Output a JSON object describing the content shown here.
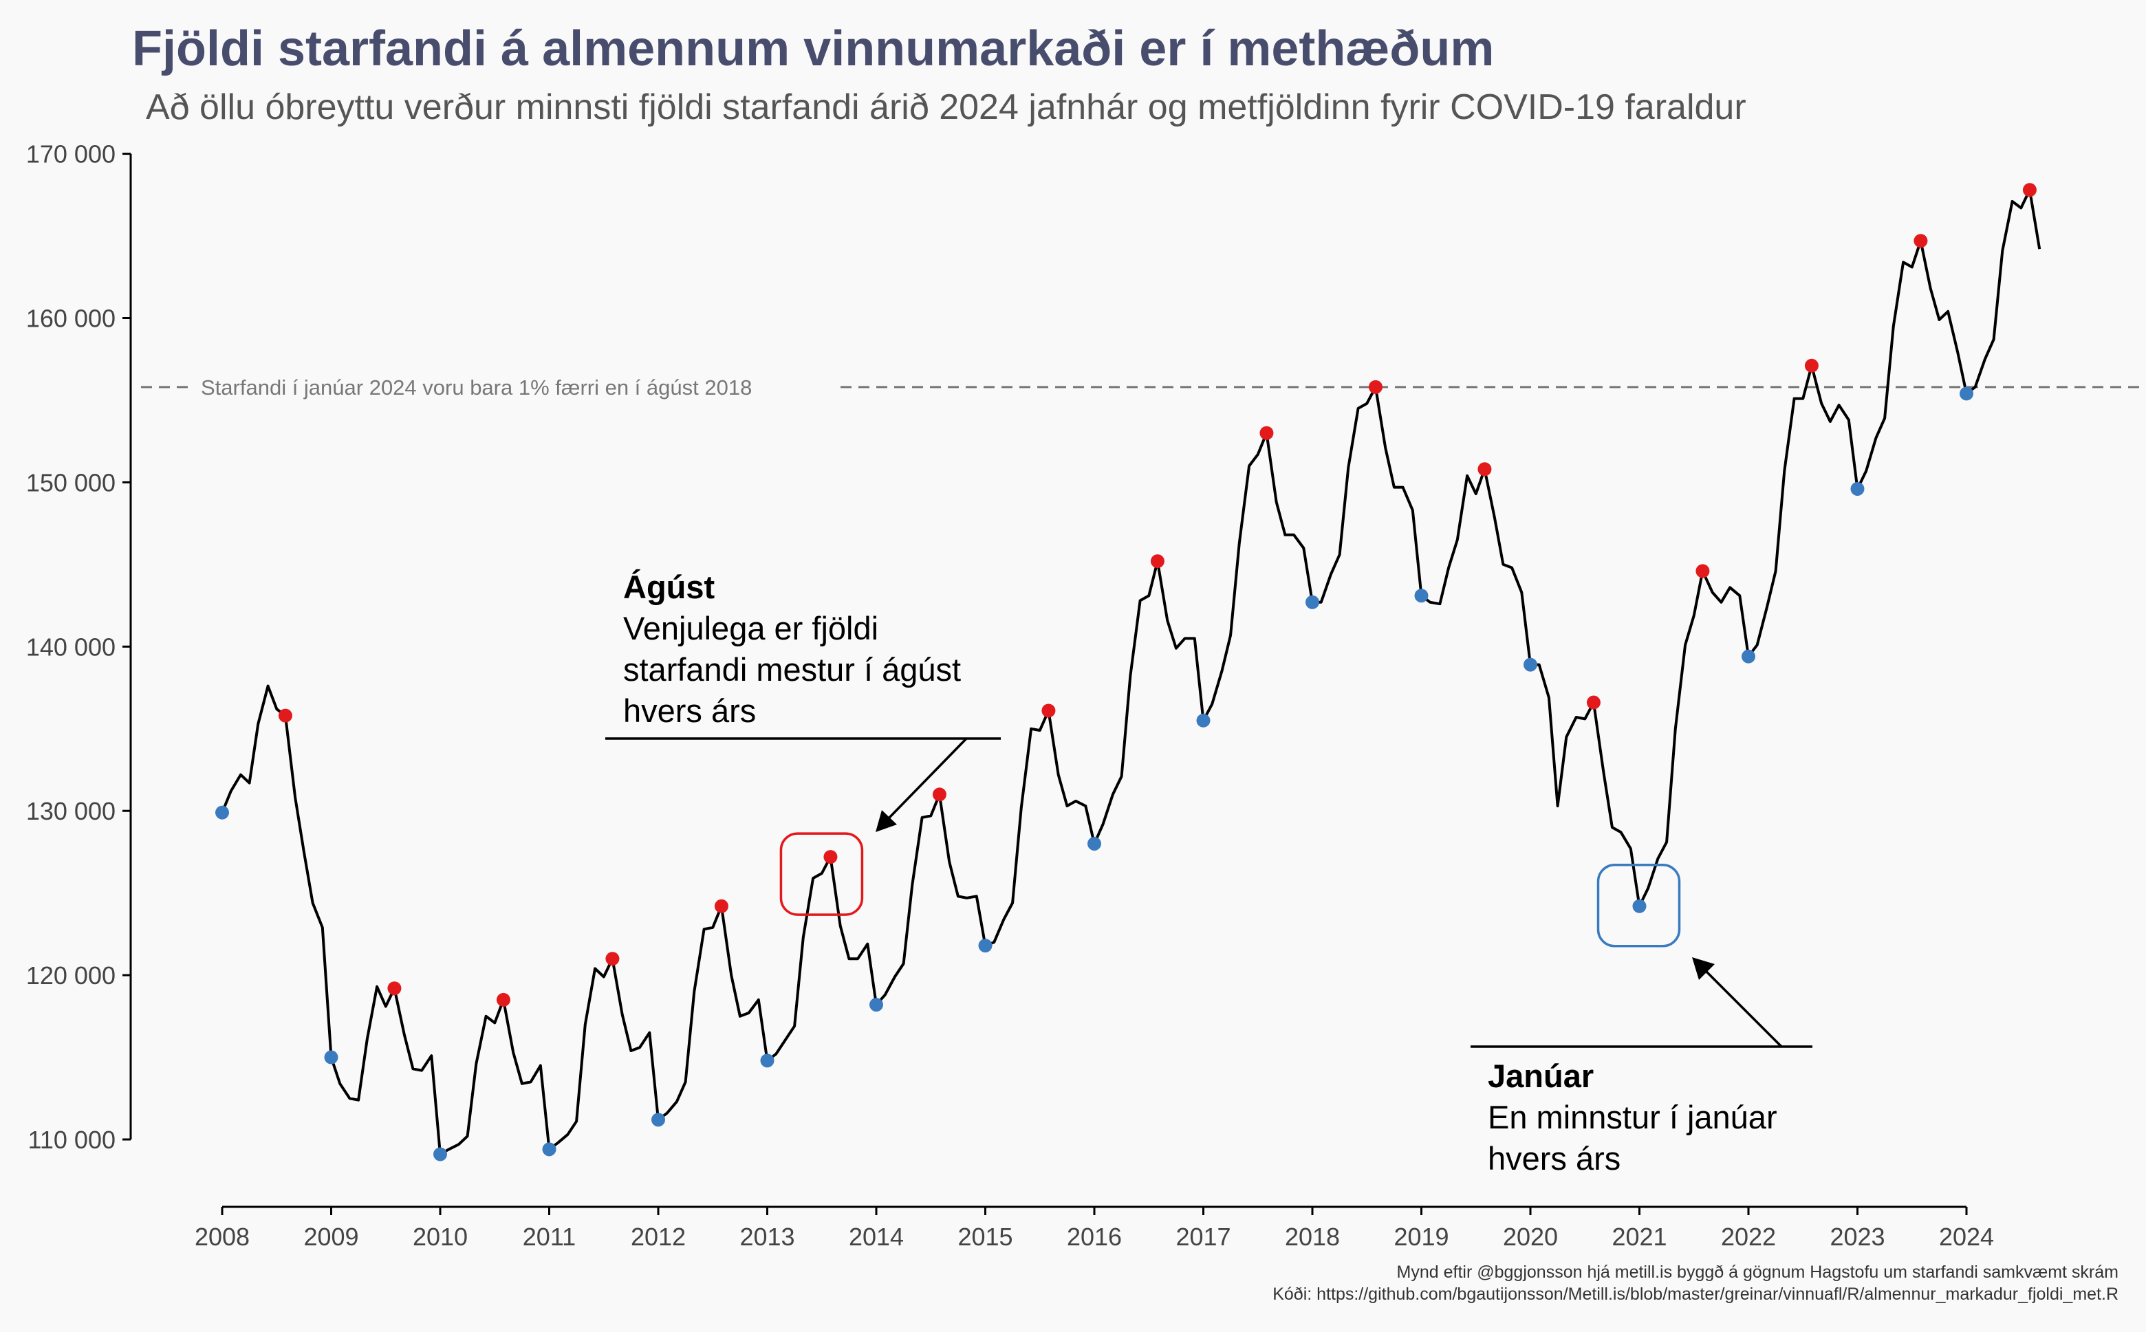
{
  "title": "Fjöldi starfandi á almennum vinnumarkaði er í methæðum",
  "subtitle": "Að öllu óbreyttu verður minnsti fjöldi starfandi árið 2024 jafnhár og metfjöldinn fyrir COVID-19 faraldur",
  "captions": {
    "line1": "Mynd eftir @bggjonsson hjá metill.is byggð á gögnum Hagstofu um starfandi samkvæmt skrám",
    "line2": "Kóði: https://github.com/bgautijonsson/Metill.is/blob/master/greinar/vinnuafl/R/almennur_markadur_fjoldi_met.R"
  },
  "annotations": {
    "august": {
      "title": "Ágúst",
      "lines": [
        "Venjulega er fjöldi",
        "starfandi mestur í ágúst",
        "hvers árs"
      ]
    },
    "january": {
      "title": "Janúar",
      "lines": [
        "En minnstur í janúar",
        "hvers árs"
      ]
    },
    "reference_line": "Starfandi í janúar 2024 voru bara 1% færri en í ágúst 2018"
  },
  "colors": {
    "line": "#000000",
    "august_points": "#e31a1c",
    "january_points": "#3a7bbf",
    "title": "#484d6d",
    "reference": "#777777"
  },
  "chart_data": {
    "type": "line",
    "x_axis": {
      "min": 2008,
      "max": 2024.7,
      "ticks": [
        2008,
        2009,
        2010,
        2011,
        2012,
        2013,
        2014,
        2015,
        2016,
        2017,
        2018,
        2019,
        2020,
        2021,
        2022,
        2023,
        2024
      ]
    },
    "y_axis": {
      "min": 108500,
      "max": 171000,
      "ticks": [
        110000,
        120000,
        130000,
        140000,
        150000,
        160000,
        170000
      ],
      "tick_labels": [
        "110 000",
        "120 000",
        "130 000",
        "140 000",
        "150 000",
        "160 000",
        "170 000"
      ]
    },
    "reference_value": 155800,
    "series": [
      {
        "values": [
          [
            2008.0,
            129900
          ],
          [
            2008.08,
            131200
          ],
          [
            2008.17,
            132200
          ],
          [
            2008.25,
            131700
          ],
          [
            2008.33,
            135300
          ],
          [
            2008.42,
            137600
          ],
          [
            2008.5,
            136200
          ],
          [
            2008.58,
            135800
          ],
          [
            2008.67,
            130800
          ],
          [
            2008.75,
            127500
          ],
          [
            2008.83,
            124400
          ],
          [
            2008.92,
            122900
          ],
          [
            2009.0,
            115000
          ],
          [
            2009.08,
            113400
          ],
          [
            2009.17,
            112500
          ],
          [
            2009.25,
            112400
          ],
          [
            2009.33,
            116100
          ],
          [
            2009.42,
            119300
          ],
          [
            2009.5,
            118100
          ],
          [
            2009.58,
            119200
          ],
          [
            2009.67,
            116400
          ],
          [
            2009.75,
            114300
          ],
          [
            2009.83,
            114200
          ],
          [
            2009.92,
            115100
          ],
          [
            2010.0,
            109100
          ],
          [
            2010.08,
            109400
          ],
          [
            2010.17,
            109700
          ],
          [
            2010.25,
            110200
          ],
          [
            2010.33,
            114600
          ],
          [
            2010.42,
            117500
          ],
          [
            2010.5,
            117100
          ],
          [
            2010.58,
            118500
          ],
          [
            2010.67,
            115300
          ],
          [
            2010.75,
            113400
          ],
          [
            2010.83,
            113500
          ],
          [
            2010.92,
            114500
          ],
          [
            2011.0,
            109400
          ],
          [
            2011.08,
            109800
          ],
          [
            2011.17,
            110300
          ],
          [
            2011.25,
            111100
          ],
          [
            2011.33,
            117000
          ],
          [
            2011.42,
            120400
          ],
          [
            2011.5,
            119900
          ],
          [
            2011.58,
            121000
          ],
          [
            2011.67,
            117600
          ],
          [
            2011.75,
            115400
          ],
          [
            2011.83,
            115600
          ],
          [
            2011.92,
            116500
          ],
          [
            2012.0,
            111200
          ],
          [
            2012.08,
            111600
          ],
          [
            2012.17,
            112300
          ],
          [
            2012.25,
            113500
          ],
          [
            2012.33,
            119000
          ],
          [
            2012.42,
            122800
          ],
          [
            2012.5,
            122900
          ],
          [
            2012.58,
            124200
          ],
          [
            2012.67,
            120000
          ],
          [
            2012.75,
            117500
          ],
          [
            2012.83,
            117700
          ],
          [
            2012.92,
            118500
          ],
          [
            2013.0,
            114800
          ],
          [
            2013.08,
            115200
          ],
          [
            2013.17,
            116100
          ],
          [
            2013.25,
            116900
          ],
          [
            2013.33,
            122300
          ],
          [
            2013.42,
            125900
          ],
          [
            2013.5,
            126200
          ],
          [
            2013.58,
            127200
          ],
          [
            2013.67,
            123000
          ],
          [
            2013.75,
            121000
          ],
          [
            2013.83,
            121000
          ],
          [
            2013.92,
            121900
          ],
          [
            2014.0,
            118200
          ],
          [
            2014.08,
            118800
          ],
          [
            2014.17,
            119900
          ],
          [
            2014.25,
            120700
          ],
          [
            2014.33,
            125500
          ],
          [
            2014.42,
            129600
          ],
          [
            2014.5,
            129700
          ],
          [
            2014.58,
            131000
          ],
          [
            2014.67,
            126900
          ],
          [
            2014.75,
            124800
          ],
          [
            2014.83,
            124700
          ],
          [
            2014.92,
            124800
          ],
          [
            2015.0,
            121800
          ],
          [
            2015.08,
            122000
          ],
          [
            2015.17,
            123400
          ],
          [
            2015.25,
            124400
          ],
          [
            2015.33,
            130200
          ],
          [
            2015.42,
            135000
          ],
          [
            2015.5,
            134900
          ],
          [
            2015.58,
            136100
          ],
          [
            2015.67,
            132200
          ],
          [
            2015.75,
            130300
          ],
          [
            2015.83,
            130600
          ],
          [
            2015.92,
            130300
          ],
          [
            2016.0,
            128000
          ],
          [
            2016.08,
            129200
          ],
          [
            2016.17,
            131000
          ],
          [
            2016.25,
            132100
          ],
          [
            2016.33,
            138200
          ],
          [
            2016.42,
            142800
          ],
          [
            2016.5,
            143100
          ],
          [
            2016.58,
            145200
          ],
          [
            2016.67,
            141600
          ],
          [
            2016.75,
            139900
          ],
          [
            2016.83,
            140500
          ],
          [
            2016.92,
            140500
          ],
          [
            2017.0,
            135500
          ],
          [
            2017.08,
            136500
          ],
          [
            2017.17,
            138500
          ],
          [
            2017.25,
            140700
          ],
          [
            2017.33,
            146300
          ],
          [
            2017.42,
            151000
          ],
          [
            2017.5,
            151700
          ],
          [
            2017.58,
            153000
          ],
          [
            2017.67,
            148800
          ],
          [
            2017.75,
            146800
          ],
          [
            2017.83,
            146800
          ],
          [
            2017.92,
            146000
          ],
          [
            2018.0,
            142700
          ],
          [
            2018.08,
            142700
          ],
          [
            2018.17,
            144400
          ],
          [
            2018.25,
            145600
          ],
          [
            2018.33,
            150900
          ],
          [
            2018.42,
            154500
          ],
          [
            2018.5,
            154800
          ],
          [
            2018.58,
            155800
          ],
          [
            2018.67,
            152100
          ],
          [
            2018.75,
            149700
          ],
          [
            2018.83,
            149700
          ],
          [
            2018.92,
            148300
          ],
          [
            2019.0,
            143100
          ],
          [
            2019.08,
            142700
          ],
          [
            2019.17,
            142600
          ],
          [
            2019.25,
            144800
          ],
          [
            2019.33,
            146500
          ],
          [
            2019.42,
            150400
          ],
          [
            2019.5,
            149300
          ],
          [
            2019.58,
            150800
          ],
          [
            2019.67,
            147900
          ],
          [
            2019.75,
            145000
          ],
          [
            2019.83,
            144800
          ],
          [
            2019.92,
            143300
          ],
          [
            2020.0,
            138900
          ],
          [
            2020.08,
            138900
          ],
          [
            2020.17,
            136900
          ],
          [
            2020.25,
            130300
          ],
          [
            2020.33,
            134500
          ],
          [
            2020.42,
            135700
          ],
          [
            2020.5,
            135600
          ],
          [
            2020.58,
            136600
          ],
          [
            2020.67,
            132400
          ],
          [
            2020.75,
            129000
          ],
          [
            2020.83,
            128700
          ],
          [
            2020.92,
            127700
          ],
          [
            2021.0,
            124200
          ],
          [
            2021.08,
            125300
          ],
          [
            2021.17,
            127100
          ],
          [
            2021.25,
            128100
          ],
          [
            2021.33,
            135000
          ],
          [
            2021.42,
            140100
          ],
          [
            2021.5,
            141900
          ],
          [
            2021.58,
            144600
          ],
          [
            2021.67,
            143300
          ],
          [
            2021.75,
            142700
          ],
          [
            2021.83,
            143600
          ],
          [
            2021.92,
            143100
          ],
          [
            2022.0,
            139400
          ],
          [
            2022.08,
            140100
          ],
          [
            2022.17,
            142400
          ],
          [
            2022.25,
            144600
          ],
          [
            2022.33,
            150700
          ],
          [
            2022.42,
            155100
          ],
          [
            2022.5,
            155100
          ],
          [
            2022.58,
            157100
          ],
          [
            2022.67,
            154800
          ],
          [
            2022.75,
            153700
          ],
          [
            2022.83,
            154700
          ],
          [
            2022.92,
            153800
          ],
          [
            2023.0,
            149600
          ],
          [
            2023.08,
            150700
          ],
          [
            2023.17,
            152700
          ],
          [
            2023.25,
            153900
          ],
          [
            2023.33,
            159500
          ],
          [
            2023.42,
            163400
          ],
          [
            2023.5,
            163100
          ],
          [
            2023.58,
            164700
          ],
          [
            2023.67,
            161800
          ],
          [
            2023.75,
            159900
          ],
          [
            2023.83,
            160400
          ],
          [
            2023.92,
            157900
          ],
          [
            2024.0,
            155400
          ],
          [
            2024.08,
            155800
          ],
          [
            2024.17,
            157500
          ],
          [
            2024.25,
            158700
          ],
          [
            2024.33,
            164100
          ],
          [
            2024.42,
            167100
          ],
          [
            2024.5,
            166700
          ],
          [
            2024.58,
            167800
          ],
          [
            2024.67,
            164200
          ]
        ]
      }
    ],
    "august_points": [
      [
        2008.58,
        135800
      ],
      [
        2009.58,
        119200
      ],
      [
        2010.58,
        118500
      ],
      [
        2011.58,
        121000
      ],
      [
        2012.58,
        124200
      ],
      [
        2013.58,
        127200
      ],
      [
        2014.58,
        131000
      ],
      [
        2015.58,
        136100
      ],
      [
        2016.58,
        145200
      ],
      [
        2017.58,
        153000
      ],
      [
        2018.58,
        155800
      ],
      [
        2019.58,
        150800
      ],
      [
        2020.58,
        136600
      ],
      [
        2021.58,
        144600
      ],
      [
        2022.58,
        157100
      ],
      [
        2023.58,
        164700
      ],
      [
        2024.58,
        167800
      ]
    ],
    "january_points": [
      [
        2008.0,
        129900
      ],
      [
        2009.0,
        115000
      ],
      [
        2010.0,
        109100
      ],
      [
        2011.0,
        109400
      ],
      [
        2012.0,
        111200
      ],
      [
        2013.0,
        114800
      ],
      [
        2014.0,
        118200
      ],
      [
        2015.0,
        121800
      ],
      [
        2016.0,
        128000
      ],
      [
        2017.0,
        135500
      ],
      [
        2018.0,
        142700
      ],
      [
        2019.0,
        143100
      ],
      [
        2020.0,
        138900
      ],
      [
        2021.0,
        124200
      ],
      [
        2022.0,
        139400
      ],
      [
        2023.0,
        149600
      ],
      [
        2024.0,
        155400
      ]
    ],
    "highlighted": {
      "august": [
        2013.58,
        127200
      ],
      "january": [
        2021.0,
        124200
      ]
    }
  }
}
